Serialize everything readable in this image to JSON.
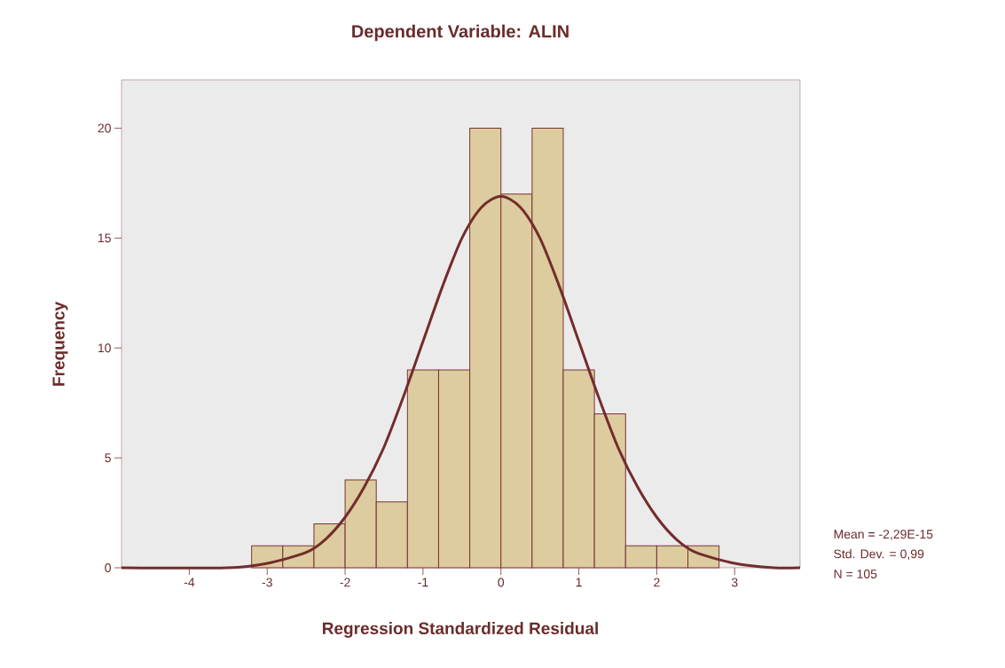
{
  "chart_data": {
    "type": "histogram",
    "title": "Dependent Variable: ALIN",
    "xlabel": "Regression Standardized Residual",
    "ylabel": "Frequency",
    "bins": [
      -3.2,
      -2.8,
      -2.4,
      -2.0,
      -1.6,
      -1.2,
      -0.8,
      -0.4,
      0.0,
      0.4,
      0.8,
      1.2,
      1.6,
      2.0,
      2.4,
      2.8
    ],
    "values": [
      1,
      1,
      2,
      4,
      3,
      9,
      9,
      20,
      17,
      20,
      9,
      7,
      1,
      1,
      1
    ],
    "color": "#dccc9f",
    "series": [
      {
        "type": "line",
        "color": "#732c2c",
        "x": [
          -4.87,
          -3.5,
          -3.0,
          -2.5,
          -2.25,
          -2.0,
          -1.75,
          -1.5,
          -1.25,
          -1.0,
          -0.75,
          -0.5,
          -0.25,
          0.0,
          0.25,
          0.5,
          0.75,
          1.0,
          1.25,
          1.5,
          1.75,
          2.0,
          2.25,
          2.5,
          3.0,
          3.5,
          3.84
        ],
        "values": [
          0.0,
          0.0,
          0.2,
          0.7,
          1.3,
          2.3,
          3.7,
          5.5,
          7.8,
          10.3,
          12.8,
          15.0,
          16.4,
          16.9,
          16.4,
          15.0,
          12.8,
          10.3,
          7.8,
          5.5,
          3.7,
          2.3,
          1.3,
          0.7,
          0.2,
          0.0,
          0.0
        ]
      }
    ],
    "xlim": [
      -4.87,
      3.84
    ],
    "ylim": [
      0,
      22.2
    ],
    "xticks": [
      -4,
      -3,
      -2,
      -1,
      0,
      1,
      2,
      3
    ],
    "yticks": [
      0,
      5,
      10,
      15,
      20
    ],
    "annotations": [
      "Mean = -2,29E-15",
      "Std. Dev. = 0,99",
      "N = 105"
    ]
  }
}
